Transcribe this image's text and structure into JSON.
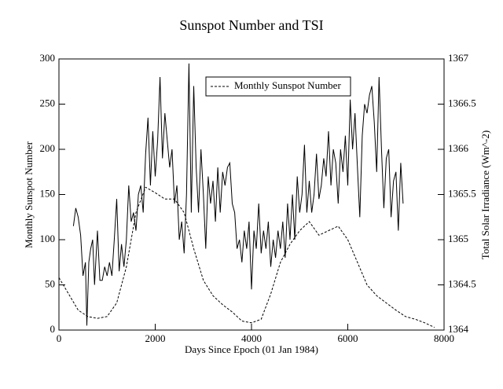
{
  "chart_data": {
    "type": "line",
    "title": "Sunspot Number and TSI",
    "x_label": "Days Since Epoch (01 Jan 1984)",
    "y_label": "Monthly Sunspot Number",
    "y2_label": "Total Solar Irradiance (Wm^-2)",
    "xlim": [
      0,
      8000
    ],
    "xticks": [
      0,
      2000,
      4000,
      6000,
      8000
    ],
    "ylim": [
      0,
      300
    ],
    "yticks": [
      0,
      50,
      100,
      150,
      200,
      250,
      300
    ],
    "y2lim": [
      1364,
      1367
    ],
    "y2ticks": [
      1364,
      1364.5,
      1365,
      1365.5,
      1366,
      1366.5,
      1367
    ],
    "legend": "upper center",
    "series": [
      {
        "name": "Monthly Sunspot Number",
        "color": "#000000",
        "style": "dashed",
        "x": [
          0,
          200,
          400,
          600,
          800,
          1000,
          1200,
          1400,
          1600,
          1800,
          2000,
          2200,
          2400,
          2600,
          2800,
          3000,
          3200,
          3400,
          3600,
          3800,
          4000,
          4200,
          4400,
          4600,
          4800,
          5000,
          5200,
          5400,
          5600,
          5800,
          6000,
          6200,
          6400,
          6600,
          6800,
          7000,
          7200,
          7400,
          7600,
          7800
        ],
        "values": [
          58,
          40,
          22,
          15,
          13,
          15,
          30,
          70,
          130,
          158,
          152,
          145,
          145,
          130,
          90,
          55,
          38,
          28,
          20,
          10,
          8,
          12,
          40,
          75,
          95,
          110,
          120,
          105,
          110,
          115,
          100,
          75,
          50,
          38,
          30,
          22,
          15,
          12,
          8,
          3
        ]
      },
      {
        "color": "#000000",
        "style": "solid",
        "axis": "y2",
        "x": [
          300,
          350,
          400,
          450,
          500,
          550,
          580,
          620,
          660,
          700,
          740,
          800,
          850,
          900,
          950,
          1000,
          1050,
          1100,
          1150,
          1200,
          1250,
          1300,
          1350,
          1400,
          1450,
          1500,
          1550,
          1600,
          1650,
          1700,
          1750,
          1800,
          1850,
          1900,
          1950,
          2000,
          2050,
          2100,
          2150,
          2200,
          2250,
          2300,
          2350,
          2400,
          2450,
          2500,
          2550,
          2600,
          2650,
          2700,
          2750,
          2800,
          2850,
          2900,
          2950,
          3000,
          3050,
          3100,
          3150,
          3200,
          3250,
          3300,
          3350,
          3400,
          3450,
          3500,
          3550,
          3600,
          3650,
          3700,
          3750,
          3800,
          3850,
          3900,
          3950,
          4000,
          4050,
          4100,
          4150,
          4200,
          4250,
          4300,
          4350,
          4400,
          4450,
          4500,
          4550,
          4600,
          4650,
          4700,
          4750,
          4800,
          4850,
          4900,
          4950,
          5000,
          5050,
          5100,
          5150,
          5200,
          5250,
          5300,
          5350,
          5400,
          5450,
          5500,
          5550,
          5600,
          5650,
          5700,
          5750,
          5800,
          5850,
          5900,
          5950,
          6000,
          6050,
          6100,
          6150,
          6200,
          6250,
          6300,
          6350,
          6400,
          6450,
          6500,
          6550,
          6600,
          6650,
          6700,
          6750,
          6800,
          6850,
          6900,
          6950,
          7000,
          7050,
          7100,
          7150
        ],
        "values": [
          1365.15,
          1365.35,
          1365.25,
          1365.05,
          1364.6,
          1364.75,
          1364.05,
          1364.75,
          1364.9,
          1365.0,
          1364.5,
          1365.1,
          1364.55,
          1364.55,
          1364.7,
          1364.6,
          1364.75,
          1364.6,
          1365.0,
          1365.45,
          1364.65,
          1364.95,
          1364.7,
          1365.0,
          1365.6,
          1365.2,
          1365.3,
          1365.1,
          1365.5,
          1365.6,
          1365.3,
          1365.95,
          1366.35,
          1365.6,
          1366.2,
          1365.7,
          1366.1,
          1366.8,
          1365.9,
          1366.4,
          1366.1,
          1365.8,
          1366.0,
          1365.4,
          1365.6,
          1365.0,
          1365.2,
          1364.85,
          1365.5,
          1366.95,
          1365.3,
          1366.7,
          1365.8,
          1365.3,
          1366.0,
          1365.5,
          1364.9,
          1365.7,
          1365.4,
          1365.65,
          1365.2,
          1365.8,
          1365.3,
          1365.75,
          1365.6,
          1365.8,
          1365.85,
          1365.4,
          1365.3,
          1364.9,
          1365.0,
          1364.75,
          1365.1,
          1364.9,
          1365.2,
          1364.45,
          1365.1,
          1364.9,
          1365.4,
          1364.85,
          1365.1,
          1364.9,
          1365.2,
          1364.7,
          1365.0,
          1364.8,
          1365.1,
          1364.9,
          1365.2,
          1364.8,
          1365.4,
          1365.0,
          1365.5,
          1365.0,
          1365.7,
          1365.3,
          1365.5,
          1366.05,
          1365.3,
          1365.65,
          1365.3,
          1365.5,
          1365.95,
          1365.45,
          1365.6,
          1365.9,
          1365.7,
          1366.2,
          1365.6,
          1366.0,
          1365.85,
          1365.4,
          1366.0,
          1365.75,
          1366.15,
          1365.6,
          1366.55,
          1366.0,
          1366.4,
          1365.8,
          1365.25,
          1366.15,
          1366.5,
          1366.4,
          1366.6,
          1366.7,
          1366.3,
          1365.75,
          1366.8,
          1366.0,
          1365.35,
          1365.9,
          1366.0,
          1365.25,
          1365.65,
          1365.75,
          1365.1,
          1365.85,
          1365.4
        ]
      }
    ]
  }
}
